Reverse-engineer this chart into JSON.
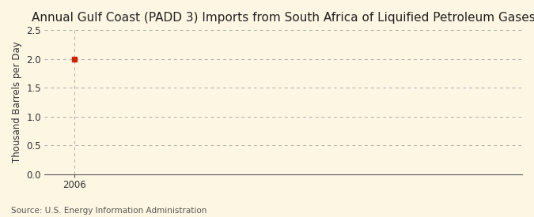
{
  "title": "Annual Gulf Coast (PADD 3) Imports from South Africa of Liquified Petroleum Gases",
  "ylabel": "Thousand Barrels per Day",
  "source_text": "Source: U.S. Energy Information Administration",
  "x_data": [
    2006
  ],
  "y_data": [
    2.0
  ],
  "marker_color": "#cc2200",
  "marker_size": 4,
  "xlim": [
    2005.4,
    2015.0
  ],
  "ylim": [
    0.0,
    2.5
  ],
  "yticks": [
    0.0,
    0.5,
    1.0,
    1.5,
    2.0,
    2.5
  ],
  "xticks": [
    2006
  ],
  "background_color": "#fdf6e3",
  "grid_color": "#aaaaaa",
  "title_fontsize": 11,
  "label_fontsize": 8.5,
  "tick_fontsize": 8.5,
  "source_fontsize": 7.5
}
